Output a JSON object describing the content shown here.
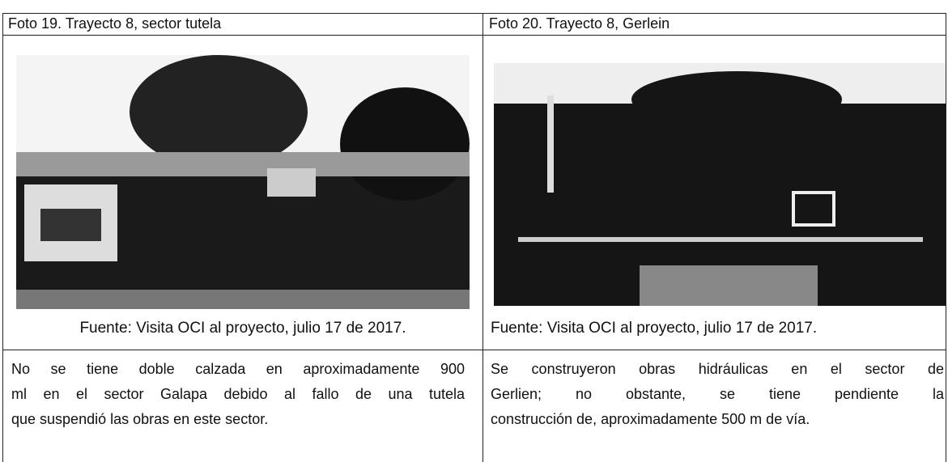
{
  "table": {
    "header": [
      "Foto 19. Trayecto 8, sector tutela",
      "Foto 20. Trayecto 8, Gerlein"
    ],
    "sources": [
      "Fuente: Visita OCI al proyecto, julio 17 de 2017.",
      "Fuente: Visita OCI al proyecto, julio 17 de 2017."
    ],
    "descriptions": [
      [
        "No se tiene doble calzada en aproximadamente 900",
        "ml en el sector Galapa debido al fallo de una tutela",
        "que suspendió las obras en este sector."
      ],
      [
        "Se construyeron obras hidráulicas en el sector de",
        "Gerlien; no obstante, se tiene pendiente la",
        "construcción de, aproximadamente 500 m de vía."
      ]
    ]
  }
}
